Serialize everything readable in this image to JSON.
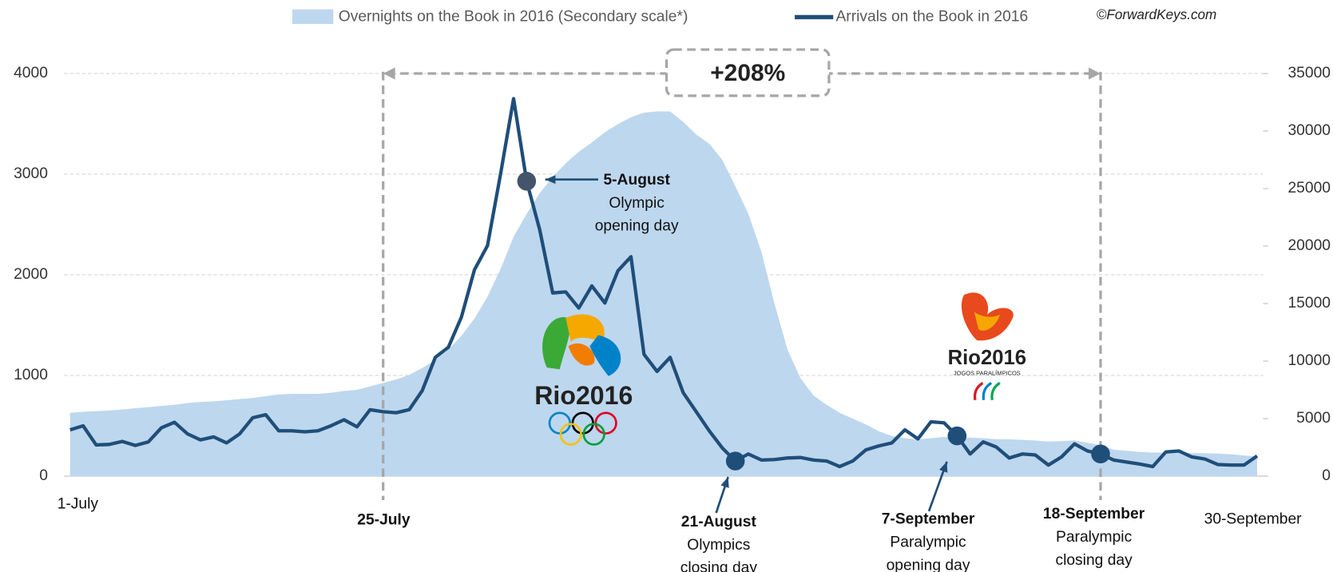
{
  "chart_data": {
    "type": "line",
    "categories": [
      "1-July",
      null,
      null,
      null,
      null,
      null,
      null,
      null,
      null,
      null,
      null,
      null,
      null,
      null,
      null,
      null,
      null,
      null,
      null,
      null,
      null,
      null,
      null,
      null,
      "25-July",
      null,
      null,
      null,
      null,
      null,
      null,
      null,
      null,
      null,
      null,
      "5-August",
      null,
      null,
      null,
      null,
      null,
      null,
      null,
      null,
      null,
      null,
      null,
      null,
      null,
      null,
      null,
      "21-August",
      null,
      null,
      null,
      null,
      null,
      null,
      null,
      null,
      null,
      null,
      null,
      null,
      null,
      null,
      null,
      null,
      "7-September",
      null,
      null,
      null,
      null,
      null,
      null,
      null,
      null,
      null,
      null,
      "18-September",
      null,
      null,
      null,
      null,
      null,
      null,
      null,
      null,
      null,
      null,
      null,
      "30-September"
    ],
    "series": [
      {
        "name": "Overnights on the Book in 2016 (Secondary scale*)",
        "type": "area",
        "axis": "y2",
        "color": "#bdd7ee",
        "values": [
          5500,
          5600,
          5650,
          5700,
          5800,
          5900,
          6000,
          6100,
          6200,
          6350,
          6450,
          6500,
          6600,
          6700,
          6800,
          6950,
          7100,
          7150,
          7150,
          7150,
          7250,
          7400,
          7500,
          7800,
          8100,
          8400,
          8800,
          9400,
          10100,
          11000,
          12200,
          13700,
          15600,
          18000,
          20800,
          22800,
          24600,
          26000,
          27200,
          28200,
          29000,
          29900,
          30600,
          31200,
          31600,
          31700,
          31700,
          30800,
          29700,
          28900,
          27500,
          25200,
          22800,
          19500,
          15000,
          11000,
          8500,
          7000,
          6200,
          5500,
          5000,
          4500,
          3900,
          3500,
          3300,
          3200,
          3300,
          3400,
          3350,
          3350,
          3300,
          3200,
          3200,
          3150,
          3100,
          3000,
          3050,
          3100,
          2900,
          2700,
          2300,
          2200,
          2100,
          2050,
          2050,
          2050,
          2000,
          2000,
          1950,
          1900,
          1800,
          1700
        ]
      },
      {
        "name": "Arrivals on the Book in 2016",
        "type": "line",
        "axis": "y",
        "color": "#1f4e79",
        "values": [
          460,
          500,
          310,
          315,
          345,
          305,
          340,
          480,
          535,
          420,
          360,
          390,
          330,
          420,
          580,
          610,
          450,
          450,
          440,
          450,
          500,
          560,
          490,
          660,
          640,
          630,
          660,
          850,
          1180,
          1280,
          1580,
          2050,
          2290,
          3000,
          3750,
          2930,
          2450,
          1820,
          1830,
          1670,
          1890,
          1720,
          2040,
          2180,
          1210,
          1040,
          1180,
          830,
          640,
          450,
          280,
          150,
          220,
          160,
          165,
          180,
          185,
          160,
          150,
          95,
          150,
          260,
          300,
          330,
          460,
          370,
          540,
          530,
          400,
          220,
          340,
          290,
          180,
          220,
          210,
          110,
          190,
          320,
          250,
          220,
          160,
          140,
          120,
          95,
          240,
          250,
          190,
          170,
          115,
          110,
          110,
          200
        ]
      }
    ],
    "ylim": [
      0,
      4000
    ],
    "yticks": [
      0,
      1000,
      2000,
      3000,
      4000
    ],
    "y2lim": [
      0,
      35000
    ],
    "y2ticks": [
      0,
      5000,
      10000,
      15000,
      20000,
      25000,
      30000,
      35000
    ],
    "grid": true,
    "legend": "top",
    "source": "©ForwardKeys.com",
    "annotations": {
      "5-August": [
        "Olympic",
        "opening day"
      ],
      "21-August": [
        "Olympics",
        "closing day"
      ],
      "7-September": [
        "Paralympic",
        "opening day"
      ],
      "18-September": [
        "Paralympic",
        "closing day"
      ]
    },
    "span": {
      "label": "+208%",
      "from": "25-July",
      "to": "18-September",
      "color": "#00b050"
    },
    "logos": [
      {
        "text": "Rio2016"
      },
      {
        "text": "Rio2016",
        "subtext": "JOGOS PARALÍMPICOS"
      }
    ]
  }
}
